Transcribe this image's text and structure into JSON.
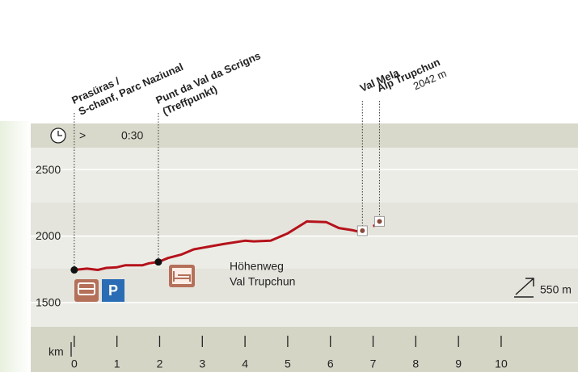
{
  "chart_data": {
    "type": "line",
    "x": [
      0,
      0.3,
      0.55,
      0.75,
      1.0,
      1.2,
      1.6,
      1.75,
      1.97,
      2.2,
      2.5,
      2.8,
      3.5,
      4.0,
      4.2,
      4.6,
      5.0,
      5.45,
      5.9,
      6.2,
      6.5,
      6.7,
      6.85,
      7.0,
      7.05
    ],
    "series": [
      {
        "color": "#b5121b",
        "values": [
          1745,
          1755,
          1745,
          1760,
          1765,
          1780,
          1780,
          1795,
          1805,
          1835,
          1860,
          1900,
          1940,
          1965,
          1960,
          1965,
          2020,
          2110,
          2105,
          2060,
          2045,
          2030,
          null,
          2075,
          2080
        ]
      }
    ],
    "xlim": [
      -1.02,
      11.8
    ],
    "ylim": [
      1317,
      2665
    ],
    "xticks": [
      0,
      1,
      2,
      3,
      4,
      5,
      6,
      7,
      8,
      9,
      10
    ],
    "yticks": [
      1500,
      2000,
      2500
    ],
    "x_label": "km",
    "time_row": {
      "symbol": ">",
      "time": "0:30"
    },
    "annotations": [
      {
        "lines": [
          "Prasüras /",
          "S-chanf, Parc Naziunal"
        ],
        "x": 0,
        "y": 1745,
        "marker": "dot"
      },
      {
        "lines": [
          "Punt da Val da Scrigns",
          "(Treffpunkt)"
        ],
        "x": 1.97,
        "y": 1805,
        "marker": "dot"
      },
      {
        "lines": [
          "Val Mela"
        ],
        "x": 6.75,
        "y": 2040,
        "marker": "square"
      },
      {
        "lines": [
          "Alp Trupchun",
          "2042 m"
        ],
        "x": 7.15,
        "y": 2110,
        "marker": "square"
      }
    ],
    "route_label": [
      "Höhenweg",
      "Val Trupchun"
    ],
    "ascent": "550 m"
  }
}
